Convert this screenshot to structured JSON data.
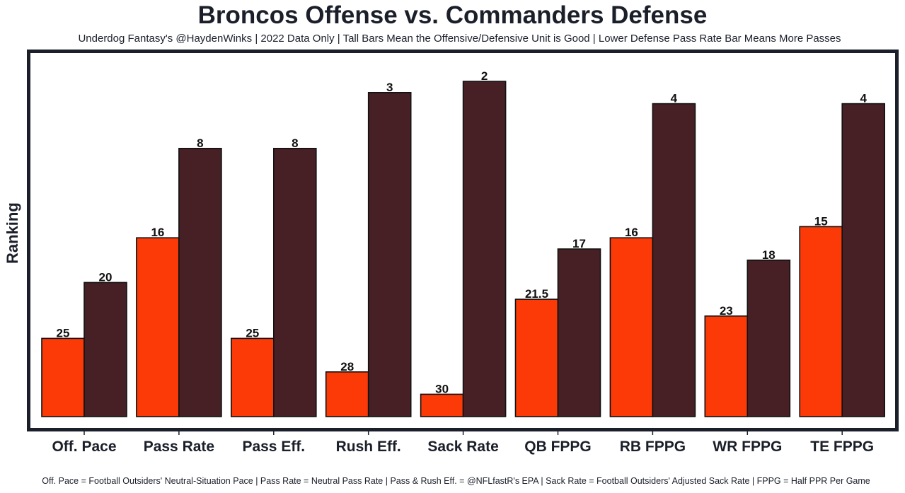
{
  "chart_data": {
    "type": "bar",
    "title": "Broncos Offense vs. Commanders Defense",
    "subtitle": "Underdog Fantasy's @HaydenWinks | 2022 Data Only | Tall Bars Mean the Offensive/Defensive Unit is Good | Lower Defense Pass Rate Bar Means More Passes",
    "xlabel": "",
    "ylabel": "Ranking",
    "footnote": "Off. Pace = Football Outsiders' Neutral-Situation Pace | Pass Rate = Neutral Pass Rate | Pass & Rush Eff. = @NFLfastR's EPA | Sack Rate = Football Outsiders' Adjusted Sack Rate | FPPG = Half PPR Per Game",
    "categories": [
      "Off. Pace",
      "Pass Rate",
      "Pass Eff.",
      "Rush Eff.",
      "Sack Rate",
      "QB FPPG",
      "RB FPPG",
      "WR FPPG",
      "TE FPPG"
    ],
    "series": [
      {
        "name": "Broncos Offense",
        "color": "#fb3a08",
        "values": [
          25,
          16,
          25,
          28,
          30,
          21.5,
          16,
          23,
          15
        ]
      },
      {
        "name": "Commanders Defense",
        "color": "#472026",
        "values": [
          20,
          8,
          8,
          3,
          2,
          17,
          4,
          18,
          4
        ]
      }
    ],
    "value_scale": "rank (bar height = 32 - rank; lower rank = taller bar)",
    "rank_max": 32,
    "grid": false,
    "legend": "none",
    "frame_color": "#1b1f2a"
  }
}
